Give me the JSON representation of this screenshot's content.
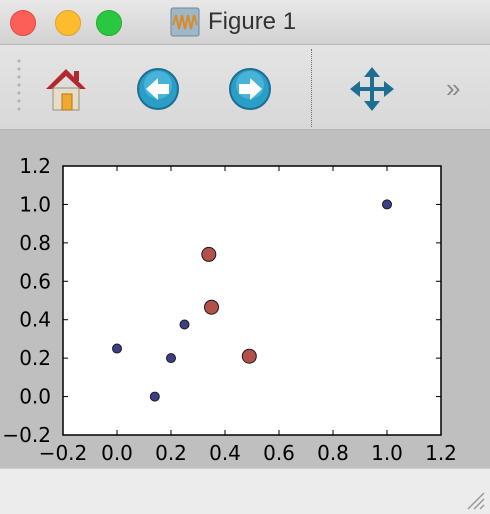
{
  "window": {
    "title": "Figure 1"
  },
  "toolbar": {
    "items": [
      {
        "id": "home",
        "icon": "home-icon"
      },
      {
        "id": "back",
        "icon": "back-arrow-icon"
      },
      {
        "id": "forward",
        "icon": "forward-arrow-icon"
      },
      {
        "id": "pan",
        "icon": "pan-move-icon"
      }
    ],
    "overflow_label": "»"
  },
  "chart_data": {
    "type": "scatter",
    "xlim": [
      -0.2,
      1.2
    ],
    "ylim": [
      -0.2,
      1.2
    ],
    "xticks": [
      "−0.2",
      "0.0",
      "0.2",
      "0.4",
      "0.6",
      "0.8",
      "1.0",
      "1.2"
    ],
    "yticks": [
      "−0.2",
      "0.0",
      "0.2",
      "0.4",
      "0.6",
      "0.8",
      "1.0",
      "1.2"
    ],
    "xtick_values": [
      -0.2,
      0.0,
      0.2,
      0.4,
      0.6,
      0.8,
      1.0,
      1.2
    ],
    "ytick_values": [
      -0.2,
      0.0,
      0.2,
      0.4,
      0.6,
      0.8,
      1.0,
      1.2
    ],
    "grid": false,
    "series": [
      {
        "color": "#3a3f86",
        "marker": "small-circle",
        "points": [
          [
            0.0,
            0.25
          ],
          [
            0.14,
            0.0
          ],
          [
            0.2,
            0.2
          ],
          [
            0.25,
            0.375
          ],
          [
            1.0,
            1.0
          ]
        ]
      },
      {
        "color": "#b2504a",
        "marker": "large-circle",
        "points": [
          [
            0.34,
            0.74
          ],
          [
            0.35,
            0.465
          ],
          [
            0.49,
            0.21
          ]
        ]
      }
    ]
  }
}
